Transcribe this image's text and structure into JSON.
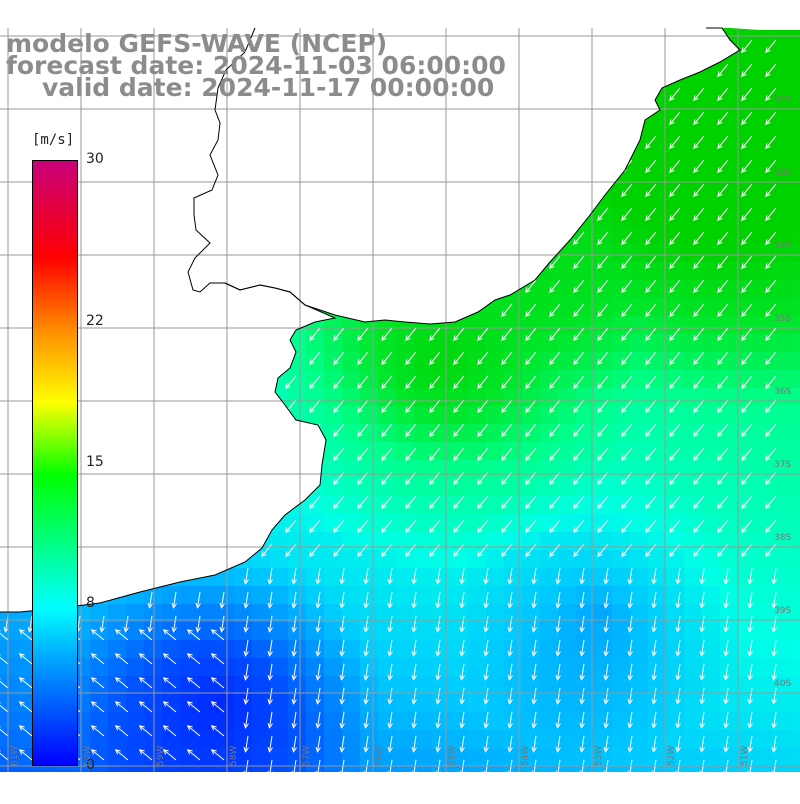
{
  "title": {
    "line1": "modelo GEFS-WAVE (NCEP)",
    "line2": "forecast date: 2024-11-03 06:00:00",
    "line3": "valid date: 2024-11-17 00:00:00"
  },
  "colorbar": {
    "unit": "[m/s]",
    "ticks": [
      {
        "label": "30",
        "value": 30
      },
      {
        "label": "22",
        "value": 22
      },
      {
        "label": "15",
        "value": 15
      },
      {
        "label": "8",
        "value": 8
      },
      {
        "label": "0",
        "value": 0
      }
    ],
    "colors": [
      "#0000ff",
      "#00aaff",
      "#00ffff",
      "#00ff00",
      "#ffff00",
      "#ff8c00",
      "#ff0000",
      "#c8007a"
    ]
  },
  "map": {
    "lat_labels": [
      "32S",
      "33S",
      "34S",
      "35S",
      "36S",
      "37S",
      "38S",
      "39S",
      "40S"
    ],
    "lon_labels": [
      "61W",
      "60W",
      "59W",
      "58W",
      "57W",
      "56W",
      "55W",
      "54W",
      "53W",
      "52W",
      "51W"
    ],
    "land_color": "#ffffff",
    "grid_color": "#999999",
    "arrow_color": "#ffffff"
  }
}
